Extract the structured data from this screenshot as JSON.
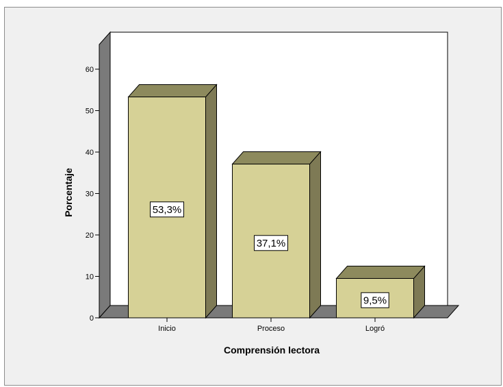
{
  "chart_data": {
    "type": "bar",
    "categories": [
      "Inicio",
      "Proceso",
      "Logró"
    ],
    "values": [
      53.3,
      37.1,
      9.5
    ],
    "data_labels": [
      "53,3%",
      "37,1%",
      "9,5%"
    ],
    "xlabel": "Comprensión lectora",
    "ylabel": "Porcentaje",
    "ylim": [
      0,
      60
    ],
    "yticks": [
      "0",
      "10",
      "20",
      "30",
      "40",
      "50",
      "60"
    ],
    "grid": false,
    "style": "3d",
    "colors": {
      "bar_front": "#d6d196",
      "bar_side": "#7e7a55",
      "bar_top": "#8d8a5d",
      "floor": "#7a7a7a",
      "wall": "#ffffff",
      "outer_background": "#f0f0f0"
    }
  }
}
